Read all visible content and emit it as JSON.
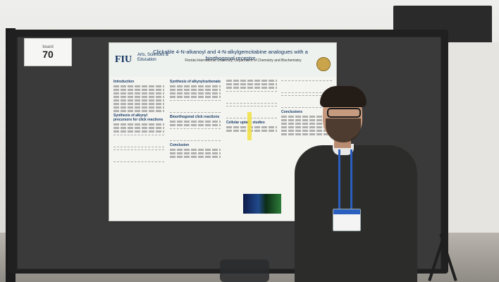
{
  "booth": {
    "label": "board",
    "number": "70"
  },
  "poster": {
    "logo": "FIU",
    "logo_subtitle": "Arts, Sciences & Education",
    "title": "Clickable 4-N-alkanoyl and 4-N-alkylgemcitabine analogues with a biorthogonal receptor",
    "authors": "Florida International University, Department of Chemistry and Biochemistry",
    "sections": [
      "Introduction",
      "Synthesis of alkynyl precursors for click reactions",
      "Synthesis of alkynylcarbonate",
      "Bioorthogonal click reactions",
      "Cellular uptake studies",
      "Conclusion",
      "Conclusions"
    ]
  },
  "colors": {
    "poster_title": "#0c2e5c",
    "lanyard": "#2b5fbf",
    "board": "#3a3a3a"
  }
}
